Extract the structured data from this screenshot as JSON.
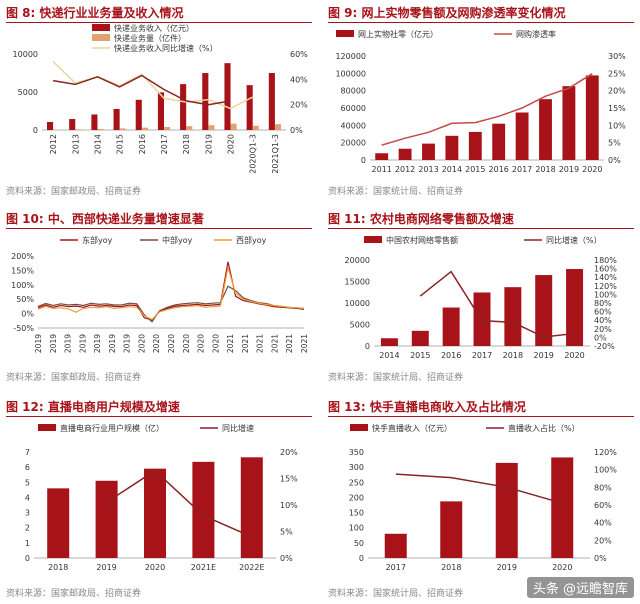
{
  "figures": [
    {
      "title": "图 8:  快递行业业务量及收入情况",
      "source": "资料来源：国家邮政局、招商证券",
      "chart_data": {
        "type": "bar",
        "categories": [
          "2012",
          "2013",
          "2014",
          "2015",
          "2016",
          "2017",
          "2018",
          "2019",
          "2020",
          "2020Q1-3",
          "2021Q1-3"
        ],
        "series": [
          {
            "name": "快递业务收入（亿元）",
            "kind": "bar",
            "axis": "left",
            "color": "#a8131a",
            "values": [
              1055,
              1442,
              2045,
              2770,
              3974,
              4957,
              6038,
              7498,
              8795,
              5900,
              7500
            ]
          },
          {
            "name": "快递业务量（亿件）",
            "kind": "bar",
            "axis": "left",
            "color": "#e3a070",
            "values": [
              57,
              92,
              140,
              207,
              313,
              401,
              507,
              635,
              833,
              560,
              760
            ]
          },
          {
            "name": "快递业务收入同比增速（%）",
            "kind": "line",
            "axis": "right",
            "color": "#ecd79a",
            "values": [
              54,
              37,
              42,
              35,
              44,
              25,
              22,
              24,
              17,
              26,
              null
            ]
          },
          {
            "name": "",
            "kind": "line",
            "axis": "right",
            "color": "#8c2323",
            "values": [
              39,
              36,
              42,
              34,
              43,
              32,
              23,
              20,
              23,
              null,
              null
            ]
          }
        ],
        "ylim": [
          0,
          10000
        ],
        "yticks": [
          "0",
          "5000",
          "10000"
        ],
        "y2lim": [
          0,
          60
        ],
        "y2ticks": [
          "0%",
          "20%",
          "40%",
          "60%"
        ],
        "legend": "top-left"
      }
    },
    {
      "title": "图 9:  网上实物零售额及网购渗透率变化情况",
      "source": "资料来源：国家统计局、招商证券",
      "chart_data": {
        "type": "bar",
        "categories": [
          "2011",
          "2012",
          "2013",
          "2014",
          "2015",
          "2016",
          "2017",
          "2018",
          "2019",
          "2020"
        ],
        "series": [
          {
            "name": "网上实物社零（亿元）",
            "kind": "bar",
            "axis": "left",
            "color": "#a8131a",
            "values": [
              7800,
              13000,
              18900,
              27900,
              32400,
              41900,
              54800,
              70200,
              85200,
              97600
            ]
          },
          {
            "name": "网购渗透率",
            "kind": "line",
            "axis": "right",
            "color": "#c54a4a",
            "values": [
              4.3,
              6.3,
              8.0,
              10.6,
              10.8,
              12.6,
              15.0,
              18.4,
              20.7,
              24.9
            ]
          }
        ],
        "ylim": [
          0,
          120000
        ],
        "yticks": [
          "0",
          "20000",
          "40000",
          "60000",
          "80000",
          "100000",
          "120000"
        ],
        "y2lim": [
          0,
          30
        ],
        "y2ticks": [
          "0%",
          "5%",
          "10%",
          "15%",
          "20%",
          "25%",
          "30%"
        ],
        "legend": "top"
      }
    },
    {
      "title": "图 10:  中、西部快递业务量增速显著",
      "source": "资料来源：国家邮政局、招商证券",
      "chart_data": {
        "type": "line",
        "x_count": 36,
        "xticks": [
          "2019",
          "2019",
          "2019",
          "2019",
          "2019",
          "2019",
          "2019",
          "2020",
          "2020",
          "2020",
          "2020",
          "2020",
          "2020",
          "2021",
          "2021",
          "2021",
          "2021",
          "2021",
          "2021"
        ],
        "series": [
          {
            "name": "东部yoy",
            "color": "#a8131a",
            "values": [
              20,
              30,
              22,
              28,
              24,
              26,
              22,
              30,
              26,
              28,
              25,
              24,
              30,
              28,
              -15,
              -22,
              8,
              18,
              25,
              28,
              30,
              32,
              28,
              30,
              32,
              180,
              60,
              45,
              40,
              34,
              30,
              24,
              22,
              20,
              18,
              15
            ]
          },
          {
            "name": "中部yoy",
            "color": "#7a4a3a",
            "values": [
              25,
              35,
              28,
              34,
              30,
              32,
              28,
              36,
              32,
              34,
              30,
              30,
              36,
              34,
              -5,
              -28,
              10,
              22,
              30,
              34,
              36,
              38,
              34,
              36,
              38,
              95,
              80,
              55,
              45,
              38,
              35,
              28,
              25,
              22,
              20,
              18
            ]
          },
          {
            "name": "西部yoy",
            "color": "#e8a23a",
            "values": [
              15,
              25,
              18,
              20,
              16,
              5,
              18,
              22,
              20,
              24,
              18,
              20,
              24,
              22,
              -8,
              -20,
              6,
              14,
              20,
              24,
              26,
              28,
              22,
              24,
              26,
              160,
              70,
              50,
              42,
              36,
              32,
              28,
              25,
              22,
              20,
              18
            ]
          }
        ],
        "ylim": [
          -50,
          200
        ],
        "yticks": [
          "-50%",
          "0%",
          "50%",
          "100%",
          "150%",
          "200%"
        ],
        "legend": "top"
      }
    },
    {
      "title": "图 11:  农村电商网络零售额及增速",
      "source": "资料来源：国家统计局、招商证券",
      "chart_data": {
        "type": "bar",
        "categories": [
          "2014",
          "2015",
          "2016",
          "2017",
          "2018",
          "2019",
          "2020"
        ],
        "series": [
          {
            "name": "中国农村网络零售额",
            "kind": "bar",
            "axis": "left",
            "color": "#a8131a",
            "values": [
              1800,
              3530,
              8945,
              12448,
              13679,
              16500,
              17900
            ]
          },
          {
            "name": "同比增速（%）",
            "kind": "line",
            "axis": "right",
            "color": "#8c2323",
            "values": [
              null,
              96,
              153,
              39,
              35,
              1,
              9
            ]
          }
        ],
        "ylim": [
          0,
          20000
        ],
        "yticks": [
          "0",
          "5000",
          "10000",
          "15000",
          "20000"
        ],
        "y2lim": [
          -20,
          180
        ],
        "y2ticks": [
          "-20%",
          "0%",
          "20%",
          "40%",
          "60%",
          "80%",
          "100%",
          "120%",
          "140%",
          "160%",
          "180%"
        ],
        "legend": "top"
      }
    },
    {
      "title": "图 12:  直播电商用户规模及增速",
      "source": "资料来源：国家邮政局、招商证券",
      "chart_data": {
        "type": "bar",
        "categories": [
          "2018",
          "2019",
          "2020",
          "2021E",
          "2022E"
        ],
        "series": [
          {
            "name": "直播电商行业用户规模（亿）",
            "kind": "bar",
            "axis": "left",
            "color": "#a8131a",
            "values": [
              4.6,
              5.1,
              5.9,
              6.35,
              6.65
            ]
          },
          {
            "name": "同比增速",
            "kind": "line",
            "axis": "right",
            "color": "#8c2323",
            "values": [
              null,
              10.5,
              16.5,
              8,
              4
            ]
          }
        ],
        "ylim": [
          0,
          7
        ],
        "yticks": [
          "0",
          "1",
          "2",
          "3",
          "4",
          "5",
          "6",
          "7"
        ],
        "y2lim": [
          0,
          20
        ],
        "y2ticks": [
          "0%",
          "5%",
          "10%",
          "15%",
          "20%"
        ],
        "legend": "top"
      }
    },
    {
      "title": "图 13:  快手直播电商收入及占比情况",
      "source": "资料来源：国家统计局、招商证券",
      "chart_data": {
        "type": "bar",
        "categories": [
          "2017",
          "2018",
          "2019",
          "2020"
        ],
        "series": [
          {
            "name": "快手直播收入（亿元）",
            "kind": "bar",
            "axis": "left",
            "color": "#a8131a",
            "values": [
              80,
              187,
              314,
              332
            ]
          },
          {
            "name": "直播收入占比（%）",
            "kind": "line",
            "axis": "right",
            "color": "#8c2323",
            "values": [
              95,
              91,
              80,
              62
            ]
          }
        ],
        "ylim": [
          0,
          350
        ],
        "yticks": [
          "0",
          "50",
          "100",
          "150",
          "200",
          "250",
          "300",
          "350"
        ],
        "y2lim": [
          0,
          120
        ],
        "y2ticks": [
          "0%",
          "20%",
          "40%",
          "60%",
          "80%",
          "100%",
          "120%"
        ],
        "legend": "top"
      }
    }
  ],
  "watermark": "头条 @远瞻智库"
}
